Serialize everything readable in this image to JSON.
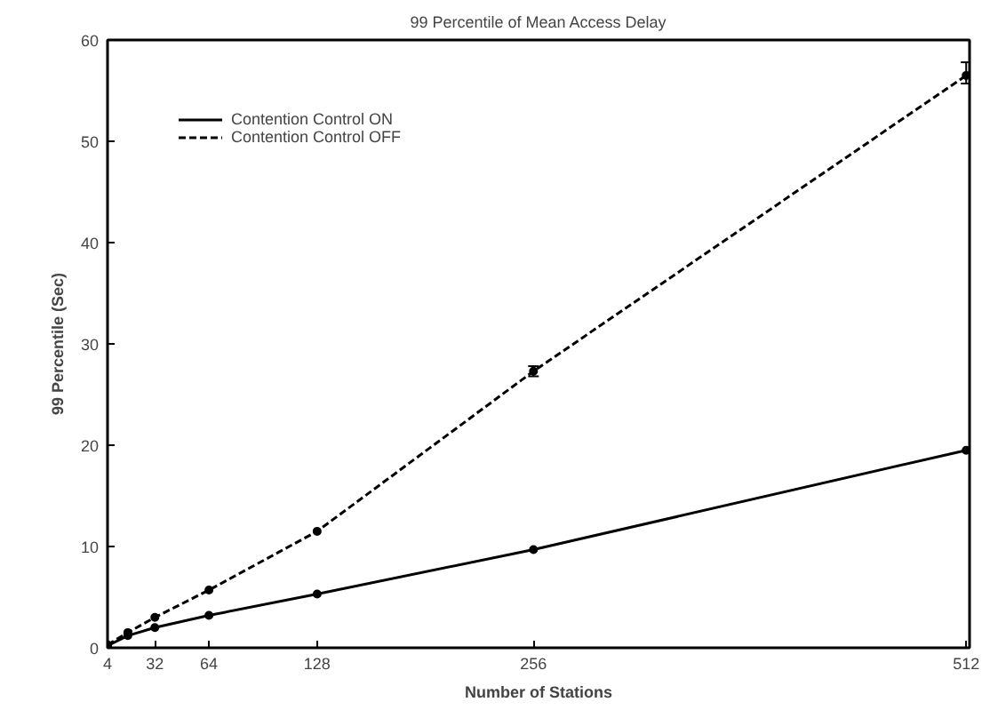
{
  "chart_data": {
    "type": "line",
    "title": "99 Percentile of Mean Access Delay",
    "xlabel": "Number of Stations",
    "ylabel": "99 Percentile (Sec)",
    "x": [
      4,
      16,
      32,
      64,
      128,
      256,
      512
    ],
    "series": [
      {
        "name": "Contention Control ON",
        "color": "#000000",
        "line_style": "solid",
        "values": [
          0.2,
          1.2,
          2,
          3.2,
          5.3,
          9.7,
          19.5
        ]
      },
      {
        "name": "Contention Control OFF",
        "color": "#000000",
        "line_style": "dashed",
        "values": [
          0.3,
          1.5,
          3,
          5.7,
          11.5,
          27.3,
          56.5
        ],
        "errors": [
          null,
          null,
          null,
          null,
          null,
          0.5,
          [
            55.7,
            57.8
          ]
        ]
      }
    ],
    "xlim": [
      4,
      514
    ],
    "ylim": [
      0,
      60
    ],
    "xticks": [
      4,
      32,
      64,
      128,
      256,
      512
    ],
    "yticks": [
      0,
      10,
      20,
      30,
      40,
      50,
      60
    ],
    "grid": false,
    "legend": "top left",
    "marker": "circle"
  }
}
